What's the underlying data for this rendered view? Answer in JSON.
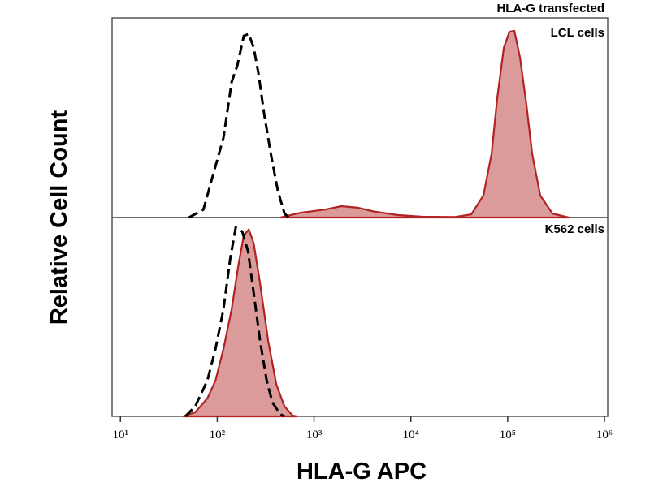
{
  "chart_data": [
    {
      "type": "histogram-overlay",
      "xscale": "log",
      "xlim": [
        8.2,
        1080000
      ],
      "ylim": [
        0,
        100
      ],
      "ylabel": "Relative Cell Count",
      "annotations": [
        "HLA-G transfected",
        "LCL cells"
      ],
      "series": [
        {
          "style": "dashed",
          "color": "#000000",
          "x": [
            51,
            72,
            90,
            116,
            141,
            161,
            188,
            212,
            238,
            267,
            305,
            357,
            424,
            495,
            546
          ],
          "values": [
            0,
            4,
            21,
            40,
            68,
            76,
            91,
            92,
            85,
            72,
            52,
            32,
            13,
            2,
            0
          ]
        },
        {
          "style": "filled",
          "color": "#b22222",
          "x": [
            450,
            728,
            1300,
            1915,
            2820,
            4140,
            7390,
            13200,
            28600,
            42100,
            56200,
            68200,
            78200,
            91200,
            104300,
            117200,
            134200,
            156700,
            179100,
            217300,
            290400,
            427300
          ],
          "values": [
            0,
            2.4,
            4,
            5.7,
            4.9,
            3,
            1.2,
            0.4,
            0.3,
            1.6,
            11,
            32,
            60,
            85,
            93,
            93.5,
            80,
            56,
            32,
            11,
            2,
            0
          ]
        }
      ]
    },
    {
      "type": "histogram-overlay",
      "xscale": "log",
      "xlim": [
        8.2,
        1080000
      ],
      "ylim": [
        0,
        100
      ],
      "xlabel": "HLA-G APC",
      "annotations": [
        "K562 cells"
      ],
      "xticks": [
        {
          "value": 10,
          "label": "10¹"
        },
        {
          "value": 100,
          "label": "10²"
        },
        {
          "value": 1000,
          "label": "10³"
        },
        {
          "value": 10000,
          "label": "10⁴"
        },
        {
          "value": 100000,
          "label": "10⁵"
        },
        {
          "value": 1000000,
          "label": "10⁶"
        }
      ],
      "series": [
        {
          "style": "dashed",
          "color": "#000000",
          "x": [
            46.9,
            59.1,
            79,
            95.9,
            116,
            136,
            155,
            181,
            208,
            238,
            277,
            324,
            371,
            450,
            495
          ],
          "values": [
            0,
            5,
            18,
            34,
            54,
            79,
            95,
            93,
            83,
            62,
            38,
            18,
            7,
            1,
            0
          ]
        },
        {
          "style": "filled",
          "color": "#b22222",
          "x": [
            44.3,
            59.1,
            79,
            95.9,
            116,
            141,
            164,
            188,
            212,
            238,
            277,
            336,
            408,
            495,
            601,
            661
          ],
          "values": [
            0,
            2,
            9,
            18,
            34,
            54,
            75,
            91,
            94,
            87,
            67,
            38,
            16,
            5,
            0.4,
            0
          ]
        }
      ]
    }
  ]
}
